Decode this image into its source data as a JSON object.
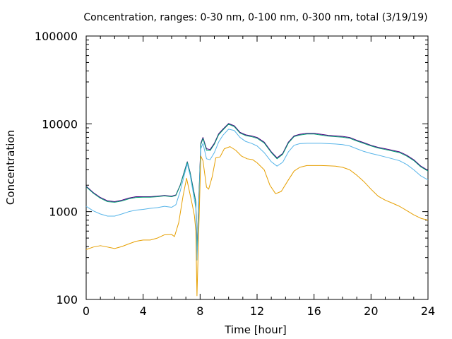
{
  "chart_data": {
    "type": "line",
    "title": "Concentration, ranges: 0-30 nm, 0-100 nm, 0-300 nm, total (3/19/19)",
    "xlabel": "Time [hour]",
    "ylabel": "Concentration",
    "xlim": [
      0,
      24
    ],
    "ylim": [
      100,
      100000
    ],
    "yscale": "log",
    "grid": false,
    "legend": "none",
    "x_ticks": [
      "0",
      "4",
      "8",
      "12",
      "16",
      "20",
      "24"
    ],
    "y_ticks": [
      "100",
      "1000",
      "10000",
      "100000"
    ],
    "series": [
      {
        "color": "#4b0082",
        "points": [
          [
            0,
            1950
          ],
          [
            0.5,
            1650
          ],
          [
            1,
            1450
          ],
          [
            1.5,
            1330
          ],
          [
            2,
            1300
          ],
          [
            2.5,
            1350
          ],
          [
            3,
            1430
          ],
          [
            3.5,
            1480
          ],
          [
            4,
            1480
          ],
          [
            4.5,
            1480
          ],
          [
            5,
            1500
          ],
          [
            5.5,
            1530
          ],
          [
            6,
            1500
          ],
          [
            6.3,
            1550
          ],
          [
            6.6,
            2000
          ],
          [
            6.9,
            2900
          ],
          [
            7.1,
            3700
          ],
          [
            7.3,
            2800
          ],
          [
            7.5,
            1900
          ],
          [
            7.7,
            1300
          ],
          [
            7.78,
            350
          ],
          [
            8.05,
            6000
          ],
          [
            8.2,
            7000
          ],
          [
            8.45,
            5200
          ],
          [
            8.7,
            5100
          ],
          [
            9,
            6000
          ],
          [
            9.3,
            7700
          ],
          [
            9.6,
            8700
          ],
          [
            10,
            10100
          ],
          [
            10.4,
            9500
          ],
          [
            10.8,
            8000
          ],
          [
            11.2,
            7500
          ],
          [
            11.6,
            7300
          ],
          [
            12,
            7000
          ],
          [
            12.5,
            6200
          ],
          [
            13,
            4800
          ],
          [
            13.4,
            4100
          ],
          [
            13.8,
            4600
          ],
          [
            14.2,
            6200
          ],
          [
            14.6,
            7300
          ],
          [
            15,
            7600
          ],
          [
            15.5,
            7800
          ],
          [
            16,
            7800
          ],
          [
            16.5,
            7600
          ],
          [
            17,
            7400
          ],
          [
            17.5,
            7300
          ],
          [
            18,
            7200
          ],
          [
            18.5,
            7000
          ],
          [
            19,
            6500
          ],
          [
            19.5,
            6100
          ],
          [
            20,
            5700
          ],
          [
            20.5,
            5400
          ],
          [
            21,
            5200
          ],
          [
            21.5,
            5000
          ],
          [
            22,
            4800
          ],
          [
            22.5,
            4400
          ],
          [
            23,
            3900
          ],
          [
            23.5,
            3300
          ],
          [
            24,
            2950
          ]
        ]
      },
      {
        "color": "#009e73",
        "points": [
          [
            0,
            1920
          ],
          [
            0.5,
            1620
          ],
          [
            1,
            1420
          ],
          [
            1.5,
            1300
          ],
          [
            2,
            1280
          ],
          [
            2.5,
            1320
          ],
          [
            3,
            1400
          ],
          [
            3.5,
            1450
          ],
          [
            4,
            1460
          ],
          [
            4.5,
            1460
          ],
          [
            5,
            1480
          ],
          [
            5.5,
            1510
          ],
          [
            6,
            1480
          ],
          [
            6.3,
            1530
          ],
          [
            6.6,
            1980
          ],
          [
            6.9,
            2850
          ],
          [
            7.1,
            3650
          ],
          [
            7.3,
            2750
          ],
          [
            7.5,
            1850
          ],
          [
            7.7,
            1270
          ],
          [
            7.78,
            330
          ],
          [
            8.05,
            5800
          ],
          [
            8.2,
            6800
          ],
          [
            8.45,
            5000
          ],
          [
            8.7,
            4950
          ],
          [
            9,
            5850
          ],
          [
            9.3,
            7500
          ],
          [
            9.6,
            8500
          ],
          [
            10,
            9900
          ],
          [
            10.4,
            9300
          ],
          [
            10.8,
            7850
          ],
          [
            11.2,
            7350
          ],
          [
            11.6,
            7150
          ],
          [
            12,
            6850
          ],
          [
            12.5,
            6050
          ],
          [
            13,
            4700
          ],
          [
            13.4,
            4000
          ],
          [
            13.8,
            4500
          ],
          [
            14.2,
            6050
          ],
          [
            14.6,
            7150
          ],
          [
            15,
            7450
          ],
          [
            15.5,
            7650
          ],
          [
            16,
            7650
          ],
          [
            16.5,
            7450
          ],
          [
            17,
            7250
          ],
          [
            17.5,
            7150
          ],
          [
            18,
            7050
          ],
          [
            18.5,
            6850
          ],
          [
            19,
            6380
          ],
          [
            19.5,
            5980
          ],
          [
            20,
            5600
          ],
          [
            20.5,
            5300
          ],
          [
            21,
            5100
          ],
          [
            21.5,
            4900
          ],
          [
            22,
            4700
          ],
          [
            22.5,
            4300
          ],
          [
            23,
            3820
          ],
          [
            23.5,
            3230
          ],
          [
            24,
            2900
          ]
        ]
      },
      {
        "color": "#56b4e9",
        "points": [
          [
            0,
            1150
          ],
          [
            0.5,
            1020
          ],
          [
            1,
            940
          ],
          [
            1.5,
            890
          ],
          [
            2,
            890
          ],
          [
            2.5,
            940
          ],
          [
            3,
            1000
          ],
          [
            3.5,
            1040
          ],
          [
            4,
            1060
          ],
          [
            4.5,
            1090
          ],
          [
            5,
            1110
          ],
          [
            5.5,
            1150
          ],
          [
            6,
            1120
          ],
          [
            6.3,
            1200
          ],
          [
            6.6,
            1700
          ],
          [
            6.9,
            2650
          ],
          [
            7.1,
            3500
          ],
          [
            7.3,
            2600
          ],
          [
            7.5,
            1700
          ],
          [
            7.7,
            1100
          ],
          [
            7.78,
            280
          ],
          [
            8.05,
            5200
          ],
          [
            8.2,
            6000
          ],
          [
            8.45,
            4000
          ],
          [
            8.7,
            3900
          ],
          [
            9,
            4700
          ],
          [
            9.3,
            6200
          ],
          [
            9.6,
            7400
          ],
          [
            10,
            8700
          ],
          [
            10.4,
            8400
          ],
          [
            10.8,
            7000
          ],
          [
            11.2,
            6300
          ],
          [
            11.6,
            6000
          ],
          [
            12,
            5600
          ],
          [
            12.5,
            4700
          ],
          [
            13,
            3700
          ],
          [
            13.4,
            3300
          ],
          [
            13.8,
            3650
          ],
          [
            14.2,
            4800
          ],
          [
            14.6,
            5700
          ],
          [
            15,
            5950
          ],
          [
            15.5,
            6000
          ],
          [
            16,
            6000
          ],
          [
            16.5,
            6000
          ],
          [
            17,
            5950
          ],
          [
            17.5,
            5900
          ],
          [
            18,
            5800
          ],
          [
            18.5,
            5600
          ],
          [
            19,
            5200
          ],
          [
            19.5,
            4850
          ],
          [
            20,
            4600
          ],
          [
            20.5,
            4400
          ],
          [
            21,
            4200
          ],
          [
            21.5,
            4000
          ],
          [
            22,
            3800
          ],
          [
            22.5,
            3450
          ],
          [
            23,
            3000
          ],
          [
            23.5,
            2550
          ],
          [
            24,
            2300
          ]
        ]
      },
      {
        "color": "#e69f00",
        "points": [
          [
            0,
            370
          ],
          [
            0.5,
            395
          ],
          [
            1,
            410
          ],
          [
            1.5,
            395
          ],
          [
            2,
            380
          ],
          [
            2.5,
            400
          ],
          [
            3,
            430
          ],
          [
            3.5,
            460
          ],
          [
            4,
            475
          ],
          [
            4.5,
            475
          ],
          [
            5,
            500
          ],
          [
            5.5,
            545
          ],
          [
            6,
            550
          ],
          [
            6.2,
            520
          ],
          [
            6.5,
            750
          ],
          [
            6.8,
            1500
          ],
          [
            7.05,
            2400
          ],
          [
            7.25,
            1700
          ],
          [
            7.45,
            1200
          ],
          [
            7.6,
            900
          ],
          [
            7.7,
            600
          ],
          [
            7.78,
            110
          ],
          [
            8.05,
            4300
          ],
          [
            8.2,
            3800
          ],
          [
            8.45,
            1900
          ],
          [
            8.6,
            1800
          ],
          [
            8.85,
            2500
          ],
          [
            9.1,
            4100
          ],
          [
            9.4,
            4200
          ],
          [
            9.7,
            5200
          ],
          [
            10.1,
            5500
          ],
          [
            10.5,
            5000
          ],
          [
            10.9,
            4300
          ],
          [
            11.3,
            4000
          ],
          [
            11.7,
            3900
          ],
          [
            12,
            3600
          ],
          [
            12.5,
            3000
          ],
          [
            12.9,
            2000
          ],
          [
            13.3,
            1600
          ],
          [
            13.7,
            1700
          ],
          [
            14.2,
            2300
          ],
          [
            14.6,
            2900
          ],
          [
            15,
            3200
          ],
          [
            15.5,
            3350
          ],
          [
            16,
            3350
          ],
          [
            16.5,
            3350
          ],
          [
            17,
            3330
          ],
          [
            17.5,
            3300
          ],
          [
            18,
            3200
          ],
          [
            18.5,
            3000
          ],
          [
            19,
            2600
          ],
          [
            19.5,
            2200
          ],
          [
            20,
            1800
          ],
          [
            20.5,
            1500
          ],
          [
            21,
            1350
          ],
          [
            21.5,
            1250
          ],
          [
            22,
            1150
          ],
          [
            22.5,
            1030
          ],
          [
            23,
            920
          ],
          [
            23.5,
            840
          ],
          [
            24,
            800
          ]
        ]
      }
    ]
  }
}
